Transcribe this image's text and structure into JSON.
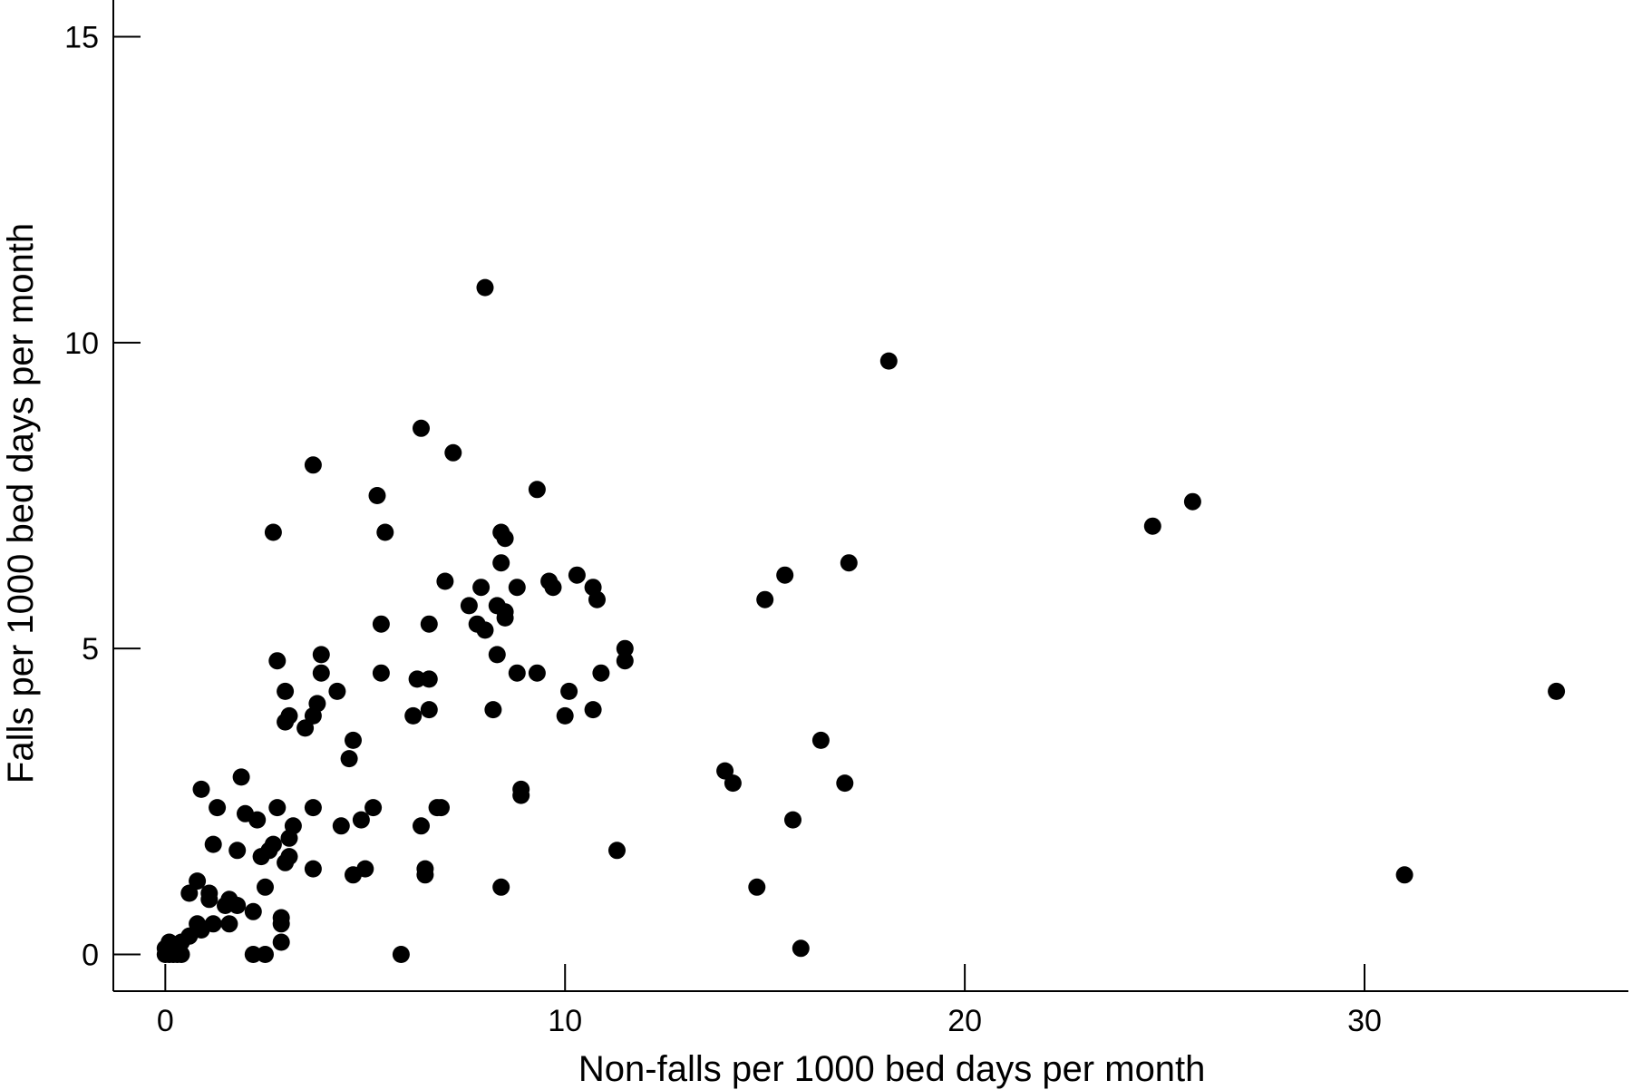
{
  "chart_data": {
    "type": "scatter",
    "title": "",
    "xlabel": "Non-falls per 1000 bed days per month",
    "ylabel": "Falls per 1000 bed days per month",
    "xlim": [
      -1.3,
      36.6
    ],
    "ylim": [
      -0.6,
      15.6
    ],
    "xticks": [
      0,
      10,
      20,
      30
    ],
    "yticks": [
      0,
      5,
      10,
      15
    ],
    "xtick_labels": [
      "0",
      "10",
      "20",
      "30"
    ],
    "ytick_labels": [
      "0",
      "5",
      "10",
      "15"
    ],
    "grid": false,
    "legend": "none",
    "marker_color": "#000000",
    "points": [
      [
        8.0,
        10.9
      ],
      [
        18.1,
        9.7
      ],
      [
        6.4,
        8.6
      ],
      [
        3.7,
        8.0
      ],
      [
        7.2,
        8.2
      ],
      [
        5.3,
        7.5
      ],
      [
        9.3,
        7.6
      ],
      [
        2.7,
        6.9
      ],
      [
        5.5,
        6.9
      ],
      [
        8.4,
        6.9
      ],
      [
        8.5,
        6.8
      ],
      [
        8.4,
        6.4
      ],
      [
        25.7,
        7.4
      ],
      [
        24.7,
        7.0
      ],
      [
        17.1,
        6.4
      ],
      [
        15.5,
        6.2
      ],
      [
        10.3,
        6.2
      ],
      [
        9.6,
        6.1
      ],
      [
        9.7,
        6.0
      ],
      [
        10.7,
        6.0
      ],
      [
        10.8,
        5.8
      ],
      [
        7.0,
        6.1
      ],
      [
        7.9,
        6.0
      ],
      [
        8.8,
        6.0
      ],
      [
        7.6,
        5.7
      ],
      [
        8.3,
        5.7
      ],
      [
        8.5,
        5.6
      ],
      [
        7.8,
        5.4
      ],
      [
        8.0,
        5.3
      ],
      [
        8.5,
        5.5
      ],
      [
        5.4,
        5.4
      ],
      [
        6.6,
        5.4
      ],
      [
        15.0,
        5.8
      ],
      [
        11.5,
        5.0
      ],
      [
        11.5,
        4.8
      ],
      [
        3.9,
        4.9
      ],
      [
        8.3,
        4.9
      ],
      [
        2.8,
        4.8
      ],
      [
        5.4,
        4.6
      ],
      [
        3.9,
        4.6
      ],
      [
        8.8,
        4.6
      ],
      [
        9.3,
        4.6
      ],
      [
        10.9,
        4.6
      ],
      [
        6.3,
        4.5
      ],
      [
        6.6,
        4.5
      ],
      [
        4.3,
        4.3
      ],
      [
        3.0,
        4.3
      ],
      [
        10.1,
        4.3
      ],
      [
        34.8,
        4.3
      ],
      [
        3.8,
        4.1
      ],
      [
        3.7,
        3.9
      ],
      [
        3.1,
        3.9
      ],
      [
        3.0,
        3.8
      ],
      [
        6.2,
        3.9
      ],
      [
        6.6,
        4.0
      ],
      [
        8.2,
        4.0
      ],
      [
        10.0,
        3.9
      ],
      [
        10.7,
        4.0
      ],
      [
        3.5,
        3.7
      ],
      [
        4.7,
        3.5
      ],
      [
        4.6,
        3.2
      ],
      [
        16.4,
        3.5
      ],
      [
        14.0,
        3.0
      ],
      [
        14.2,
        2.8
      ],
      [
        17.0,
        2.8
      ],
      [
        1.9,
        2.9
      ],
      [
        0.9,
        2.7
      ],
      [
        8.9,
        2.6
      ],
      [
        8.9,
        2.7
      ],
      [
        6.9,
        2.4
      ],
      [
        6.8,
        2.4
      ],
      [
        5.2,
        2.4
      ],
      [
        3.7,
        2.4
      ],
      [
        2.8,
        2.4
      ],
      [
        1.3,
        2.4
      ],
      [
        2.0,
        2.3
      ],
      [
        2.3,
        2.2
      ],
      [
        4.9,
        2.2
      ],
      [
        4.4,
        2.1
      ],
      [
        6.4,
        2.1
      ],
      [
        15.7,
        2.2
      ],
      [
        3.2,
        2.1
      ],
      [
        3.1,
        1.9
      ],
      [
        2.7,
        1.8
      ],
      [
        1.2,
        1.8
      ],
      [
        2.6,
        1.7
      ],
      [
        1.8,
        1.7
      ],
      [
        2.4,
        1.6
      ],
      [
        3.0,
        1.5
      ],
      [
        3.1,
        1.6
      ],
      [
        11.3,
        1.7
      ],
      [
        3.7,
        1.4
      ],
      [
        5.0,
        1.4
      ],
      [
        4.7,
        1.3
      ],
      [
        6.5,
        1.4
      ],
      [
        6.5,
        1.3
      ],
      [
        8.4,
        1.1
      ],
      [
        14.8,
        1.1
      ],
      [
        0.8,
        1.2
      ],
      [
        0.6,
        1.0
      ],
      [
        1.1,
        1.0
      ],
      [
        1.1,
        0.9
      ],
      [
        2.5,
        1.1
      ],
      [
        1.6,
        0.9
      ],
      [
        1.5,
        0.8
      ],
      [
        1.8,
        0.8
      ],
      [
        2.2,
        0.7
      ],
      [
        2.9,
        0.6
      ],
      [
        2.9,
        0.5
      ],
      [
        1.2,
        0.5
      ],
      [
        1.6,
        0.5
      ],
      [
        0.8,
        0.5
      ],
      [
        0.9,
        0.4
      ],
      [
        0.6,
        0.3
      ],
      [
        31.0,
        1.3
      ],
      [
        2.9,
        0.2
      ],
      [
        0.1,
        0.2
      ],
      [
        0.4,
        0.2
      ],
      [
        0.0,
        0.0
      ],
      [
        0.1,
        0.0
      ],
      [
        0.2,
        0.0
      ],
      [
        0.3,
        0.0
      ],
      [
        0.4,
        0.0
      ],
      [
        0.0,
        0.1
      ],
      [
        0.2,
        0.1
      ],
      [
        2.2,
        0.0
      ],
      [
        2.5,
        0.0
      ],
      [
        5.9,
        0.0
      ],
      [
        15.9,
        0.1
      ]
    ]
  }
}
